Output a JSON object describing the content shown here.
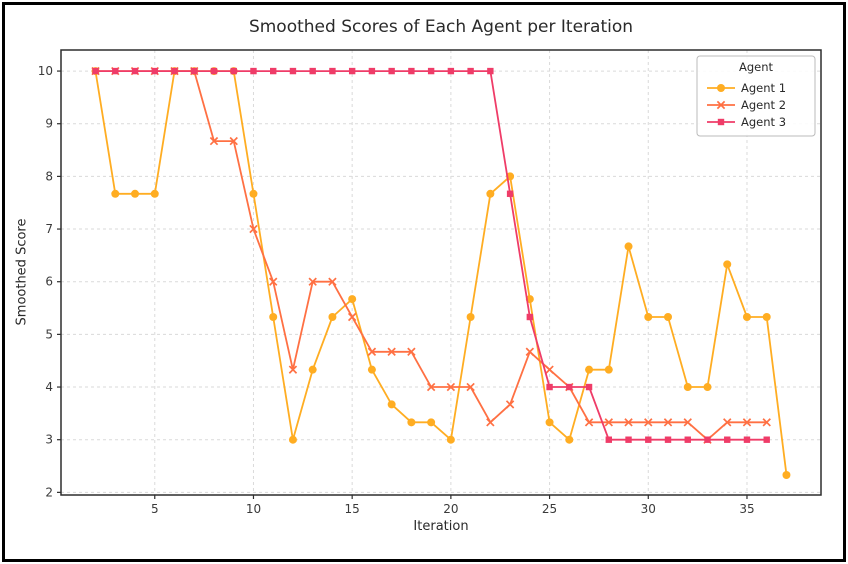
{
  "chart_data": {
    "type": "line",
    "title": "Smoothed Scores of Each Agent per Iteration",
    "xlabel": "Iteration",
    "ylabel": "Smoothed Score",
    "xlim": [
      0.25,
      38.75
    ],
    "ylim": [
      1.95,
      10.4
    ],
    "x_ticks": [
      5,
      10,
      15,
      20,
      25,
      30,
      35
    ],
    "y_ticks": [
      2,
      3,
      4,
      5,
      6,
      7,
      8,
      9,
      10
    ],
    "grid": true,
    "grid_style": "dashed",
    "legend_title": "Agent",
    "legend_position": "upper right",
    "colors": {
      "grid": "#dadada",
      "spine": "#2d2d2d",
      "tick_label": "#3a3a3a",
      "legend_border": "#bbbbbb"
    },
    "series": [
      {
        "name": "Agent 1",
        "color": "#FFAD22",
        "marker": "circle",
        "x": [
          2,
          3,
          4,
          5,
          6,
          7,
          8,
          9,
          10,
          11,
          12,
          13,
          14,
          15,
          16,
          17,
          18,
          19,
          20,
          21,
          22,
          23,
          24,
          25,
          26,
          27,
          28,
          29,
          30,
          31,
          32,
          33,
          34,
          35,
          36,
          37
        ],
        "y": [
          10,
          7.67,
          7.67,
          7.67,
          10,
          10,
          10,
          10,
          7.67,
          5.33,
          3.0,
          4.33,
          5.33,
          5.67,
          4.33,
          3.67,
          3.33,
          3.33,
          3.0,
          5.33,
          7.67,
          8.0,
          5.67,
          3.33,
          3.0,
          4.33,
          4.33,
          6.67,
          5.33,
          5.33,
          4.0,
          4.0,
          6.33,
          5.33,
          5.33,
          2.33
        ]
      },
      {
        "name": "Agent 2",
        "color": "#FF7043",
        "marker": "x",
        "x": [
          2,
          3,
          4,
          5,
          6,
          7,
          8,
          9,
          10,
          11,
          12,
          13,
          14,
          15,
          16,
          17,
          18,
          19,
          20,
          21,
          22,
          23,
          24,
          25,
          26,
          27,
          28,
          29,
          30,
          31,
          32,
          33,
          34,
          35,
          36
        ],
        "y": [
          10,
          10,
          10,
          10,
          10,
          10,
          8.67,
          8.67,
          7.0,
          6.0,
          4.33,
          6.0,
          6.0,
          5.33,
          4.67,
          4.67,
          4.67,
          4.0,
          4.0,
          4.0,
          3.33,
          3.67,
          4.67,
          4.33,
          4.0,
          3.33,
          3.33,
          3.33,
          3.33,
          3.33,
          3.33,
          3.0,
          3.33,
          3.33,
          3.33
        ]
      },
      {
        "name": "Agent 3",
        "color": "#EF3C68",
        "marker": "square",
        "x": [
          2,
          3,
          4,
          5,
          6,
          7,
          8,
          9,
          10,
          11,
          12,
          13,
          14,
          15,
          16,
          17,
          18,
          19,
          20,
          21,
          22,
          23,
          24,
          25,
          26,
          27,
          28,
          29,
          30,
          31,
          32,
          33,
          34,
          35,
          36
        ],
        "y": [
          10,
          10,
          10,
          10,
          10,
          10,
          10,
          10,
          10,
          10,
          10,
          10,
          10,
          10,
          10,
          10,
          10,
          10,
          10,
          10,
          10,
          7.67,
          5.33,
          4.0,
          4.0,
          4.0,
          3.0,
          3.0,
          3.0,
          3.0,
          3.0,
          3.0,
          3.0,
          3.0,
          3.0
        ]
      }
    ]
  }
}
